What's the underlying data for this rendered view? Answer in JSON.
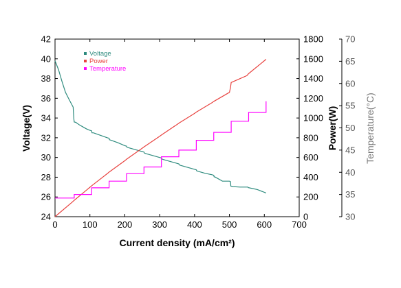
{
  "chart_data": {
    "type": "line",
    "xlabel": "Current density (mA/cm²)",
    "ylabel_left": "Voltage(V)",
    "ylabel_right": "Power(W)",
    "ylabel_far_right": "Temperature(°C)",
    "xlim": [
      0,
      700
    ],
    "x_ticks": [
      "0",
      "100",
      "200",
      "300",
      "400",
      "500",
      "600",
      "700"
    ],
    "voltage_axis": {
      "lim": [
        24,
        42
      ],
      "ticks": [
        "24",
        "26",
        "28",
        "30",
        "32",
        "34",
        "36",
        "38",
        "40",
        "42"
      ]
    },
    "power_axis": {
      "lim": [
        0,
        1800
      ],
      "ticks": [
        "0",
        "200",
        "400",
        "600",
        "800",
        "1000",
        "1200",
        "1400",
        "1600",
        "1800"
      ]
    },
    "temperature_axis": {
      "lim": [
        30,
        70
      ],
      "ticks": [
        "30",
        "35",
        "40",
        "45",
        "50",
        "55",
        "60",
        "65",
        "70"
      ]
    },
    "legend_placement": "top-left",
    "grid": false,
    "series": [
      {
        "name": "Voltage",
        "color": "#2e8b7e",
        "axis": "voltage",
        "x": [
          0,
          10,
          20,
          30,
          40,
          52,
          54,
          55,
          60,
          70,
          80,
          90,
          100,
          105,
          106,
          110,
          130,
          150,
          155,
          156,
          160,
          180,
          200,
          205,
          206,
          210,
          230,
          255,
          256,
          260,
          280,
          300,
          305,
          306,
          310,
          330,
          350,
          355,
          356,
          360,
          380,
          400,
          405,
          406,
          410,
          430,
          450,
          455,
          456,
          460,
          480,
          500,
          503,
          504,
          510,
          530,
          550,
          553,
          554,
          560,
          580,
          605
        ],
        "y": [
          39.8,
          38.9,
          37.7,
          36.6,
          35.9,
          35.1,
          33.9,
          33.6,
          33.55,
          33.3,
          33.1,
          32.9,
          32.75,
          32.7,
          32.5,
          32.5,
          32.25,
          32.0,
          31.95,
          31.8,
          31.75,
          31.5,
          31.2,
          31.15,
          31.05,
          31.0,
          30.8,
          30.55,
          30.45,
          30.4,
          30.2,
          30.0,
          29.95,
          29.85,
          29.8,
          29.6,
          29.4,
          29.35,
          29.25,
          29.2,
          29.0,
          28.8,
          28.75,
          28.65,
          28.6,
          28.4,
          28.25,
          28.2,
          28.05,
          28.0,
          27.6,
          27.6,
          27.55,
          27.1,
          27.05,
          27.0,
          27.0,
          27.0,
          26.95,
          26.9,
          26.75,
          26.4
        ]
      },
      {
        "name": "Power",
        "color": "#e8423f",
        "axis": "power",
        "x": [
          0,
          50,
          55,
          100,
          105,
          150,
          155,
          200,
          205,
          250,
          255,
          300,
          305,
          350,
          355,
          400,
          405,
          450,
          455,
          500,
          503,
          505,
          550,
          555,
          605
        ],
        "y": [
          0,
          150,
          166,
          298,
          313,
          437,
          452,
          567,
          582,
          694,
          707,
          815,
          828,
          935,
          948,
          1047,
          1060,
          1155,
          1168,
          1260,
          1308,
          1360,
          1430,
          1450,
          1595
        ]
      },
      {
        "name": "Temperature",
        "color": "#ff00ff",
        "axis": "temperature",
        "x": [
          0,
          55,
          55,
          105,
          105,
          155,
          155,
          205,
          205,
          255,
          255,
          305,
          305,
          355,
          355,
          405,
          405,
          455,
          455,
          505,
          505,
          555,
          555,
          605,
          605
        ],
        "y": [
          34.2,
          34.2,
          35.0,
          35.0,
          36.5,
          36.5,
          38.0,
          38.0,
          39.7,
          39.7,
          41.2,
          41.2,
          43.5,
          43.5,
          45.0,
          45.0,
          47.2,
          47.2,
          49.0,
          49.0,
          51.5,
          51.5,
          53.5,
          53.5,
          56.0
        ]
      }
    ]
  }
}
